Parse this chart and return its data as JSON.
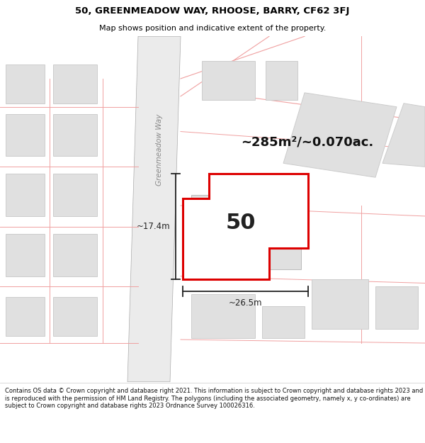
{
  "title": "50, GREENMEADOW WAY, RHOOSE, BARRY, CF62 3FJ",
  "subtitle": "Map shows position and indicative extent of the property.",
  "footer": "Contains OS data © Crown copyright and database right 2021. This information is subject to Crown copyright and database rights 2023 and is reproduced with the permission of HM Land Registry. The polygons (including the associated geometry, namely x, y co-ordinates) are subject to Crown copyright and database rights 2023 Ordnance Survey 100026316.",
  "area_label": "~285m²/~0.070ac.",
  "number_label": "50",
  "dim_h": "~17.4m",
  "dim_w": "~26.5m",
  "map_bg": "#ffffff",
  "road_fill": "#e8e8e8",
  "road_edge": "#aaaaaa",
  "building_fill": "#e0e0e0",
  "building_edge": "#cccccc",
  "highlight_color": "#dd0000",
  "highlight_fill": "#ffffff",
  "parcel_edge": "#f0a0a0",
  "street_label_color": "#888888",
  "street_label": "Greenmeadow Way",
  "dim_color": "#222222",
  "title_fontsize": 9.5,
  "subtitle_fontsize": 8.0,
  "footer_fontsize": 6.0
}
